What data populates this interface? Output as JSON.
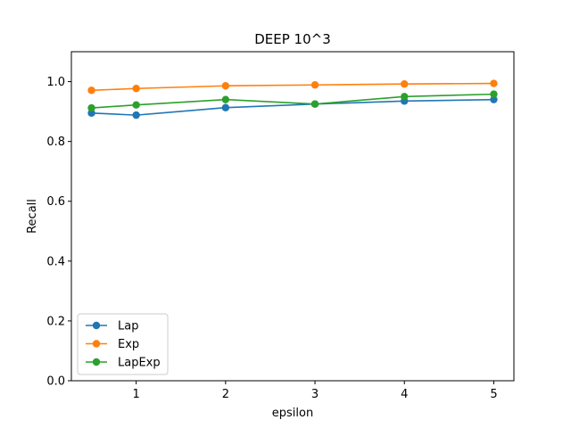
{
  "chart_data": {
    "type": "line",
    "title": "DEEP 10^3",
    "xlabel": "epsilon",
    "ylabel": "Recall",
    "x": [
      0.5,
      1,
      2,
      3,
      4,
      5
    ],
    "xticks": [
      1,
      2,
      3,
      4,
      5
    ],
    "xtick_labels": [
      "1",
      "2",
      "3",
      "4",
      "5"
    ],
    "xlim": [
      0.275,
      5.225
    ],
    "yticks": [
      0.0,
      0.2,
      0.4,
      0.6,
      0.8,
      1.0
    ],
    "ytick_labels": [
      "0.0",
      "0.2",
      "0.4",
      "0.6",
      "0.8",
      "1.0"
    ],
    "ylim": [
      0.0,
      1.1
    ],
    "grid": false,
    "legend_position": "lower-left",
    "series": [
      {
        "name": "Lap",
        "color": "#1f77b4",
        "values": [
          0.895,
          0.888,
          0.913,
          0.925,
          0.935,
          0.94
        ]
      },
      {
        "name": "Exp",
        "color": "#ff7f0e",
        "values": [
          0.971,
          0.977,
          0.986,
          0.989,
          0.992,
          0.994
        ]
      },
      {
        "name": "LapExp",
        "color": "#2ca02c",
        "values": [
          0.912,
          0.922,
          0.94,
          0.925,
          0.95,
          0.958
        ]
      }
    ]
  }
}
